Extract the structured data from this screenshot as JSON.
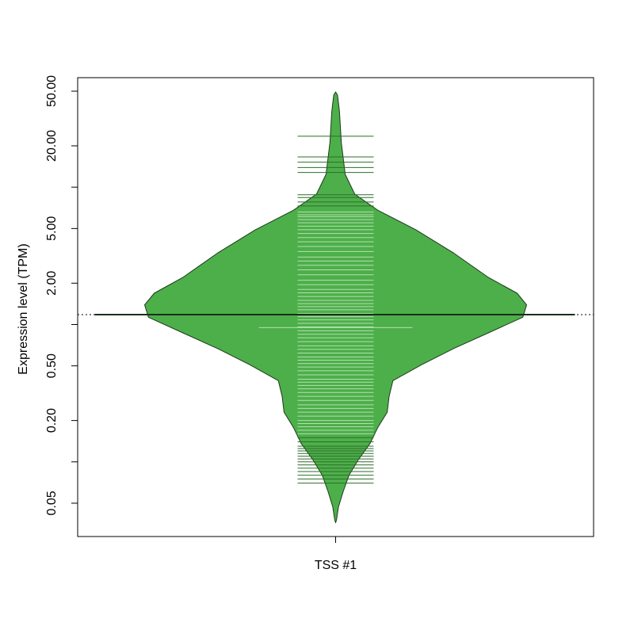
{
  "chart_data": {
    "type": "beanplot",
    "y_label": "Expression level (TPM)",
    "categories": [
      "TSS #1"
    ],
    "log_y": true,
    "ylim": [
      0.0286,
      62.7
    ],
    "yticks": [
      {
        "value": 0.05,
        "label": "0.05"
      },
      {
        "value": 0.2,
        "label": "0.20"
      },
      {
        "value": 0.5,
        "label": "0.50"
      },
      {
        "value": 2,
        "label": "2.00"
      },
      {
        "value": 5,
        "label": "5.00"
      },
      {
        "value": 20,
        "label": "20.00"
      },
      {
        "value": 50,
        "label": "50.00"
      }
    ],
    "yminor_ticks": [
      0.1,
      1,
      10
    ],
    "bean_color": "#4daf4a",
    "border_color": "#1b3a1a",
    "rug_color": "#2e6e2b",
    "rug_light_color": "#b3dfb0",
    "density": {
      "y": [
        0.038,
        0.047,
        0.061,
        0.08,
        0.104,
        0.136,
        0.177,
        0.23,
        0.3,
        0.39,
        0.51,
        0.67,
        0.87,
        1.13,
        1.39,
        1.69,
        2.2,
        3.3,
        4.9,
        6.8,
        8.9,
        12.4,
        21.1,
        35.9,
        46.8
      ],
      "widths": [
        0.005,
        0.015,
        0.04,
        0.07,
        0.12,
        0.18,
        0.22,
        0.27,
        0.28,
        0.3,
        0.45,
        0.62,
        0.8,
        0.98,
        1.0,
        0.95,
        0.8,
        0.62,
        0.42,
        0.22,
        0.1,
        0.05,
        0.03,
        0.02,
        0.01
      ]
    },
    "observations": [
      23.5,
      16.6,
      15.2,
      13.9,
      12.8,
      8.8,
      8.4,
      7.8,
      7.3,
      6.6,
      6.3,
      6.1,
      5.8,
      5.5,
      5.2,
      4.9,
      4.6,
      4.3,
      4.0,
      3.7,
      3.4,
      3.1,
      2.9,
      2.7,
      2.5,
      2.3,
      2.1,
      1.95,
      1.8,
      1.7,
      1.6,
      1.5,
      1.42,
      1.35,
      1.28,
      1.2,
      1.14,
      1.08,
      1.02,
      0.96,
      0.9,
      0.85,
      0.8,
      0.75,
      0.7,
      0.66,
      0.62,
      0.58,
      0.55,
      0.52,
      0.49,
      0.46,
      0.43,
      0.4,
      0.38,
      0.36,
      0.34,
      0.32,
      0.3,
      0.28,
      0.26,
      0.245,
      0.23,
      0.215,
      0.2,
      0.19,
      0.18,
      0.17,
      0.16,
      0.15,
      0.14,
      0.13,
      0.125,
      0.12,
      0.115,
      0.11,
      0.105,
      0.1,
      0.095,
      0.09,
      0.085,
      0.08,
      0.075,
      0.07
    ],
    "bean_line": 1.18,
    "median": 0.95,
    "overall_line": 1.18
  }
}
